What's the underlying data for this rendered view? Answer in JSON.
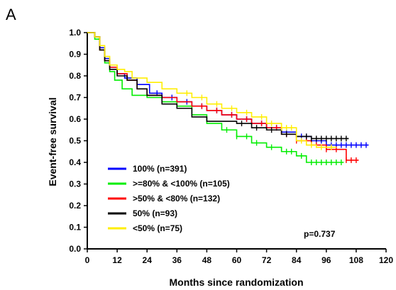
{
  "panel_label": "A",
  "chart_data": {
    "type": "line",
    "title": "",
    "xlabel": "Months since randomization",
    "ylabel": "Event-free survival",
    "xlim": [
      0,
      120
    ],
    "ylim": [
      0,
      1.0
    ],
    "x_ticks": [
      0,
      12,
      24,
      36,
      48,
      60,
      72,
      84,
      96,
      108,
      120
    ],
    "y_ticks": [
      "0.0",
      "0.1",
      "0.2",
      "0.3",
      "0.4",
      "0.5",
      "0.6",
      "0.7",
      "0.8",
      "0.9",
      "1.0"
    ],
    "grid": false,
    "legend_position": "bottom-left",
    "annotation": "p=0.737",
    "series": [
      {
        "name": "100% (n=391)",
        "color": "#0000ff",
        "x": [
          0,
          3,
          5,
          7,
          9,
          12,
          15,
          20,
          25,
          30,
          36,
          42,
          48,
          54,
          60,
          66,
          72,
          78,
          84,
          90,
          96,
          102,
          108,
          113
        ],
        "y": [
          1.0,
          0.98,
          0.93,
          0.88,
          0.84,
          0.81,
          0.79,
          0.76,
          0.72,
          0.7,
          0.68,
          0.66,
          0.64,
          0.62,
          0.6,
          0.58,
          0.56,
          0.54,
          0.52,
          0.5,
          0.48,
          0.48,
          0.48,
          0.48
        ],
        "censor_x": [
          28,
          34,
          40,
          46,
          52,
          58,
          64,
          70,
          76,
          80,
          84,
          86,
          88,
          90,
          92,
          94,
          96,
          98,
          100,
          102,
          104,
          106,
          108,
          110,
          112
        ]
      },
      {
        "name": ">=80% & <100% (n=105)",
        "color": "#00ee00",
        "x": [
          0,
          3,
          5,
          7,
          9,
          11,
          14,
          18,
          24,
          30,
          36,
          42,
          48,
          54,
          60,
          66,
          72,
          78,
          84,
          88,
          94,
          100,
          103
        ],
        "y": [
          1.0,
          0.97,
          0.92,
          0.86,
          0.82,
          0.78,
          0.74,
          0.71,
          0.7,
          0.68,
          0.66,
          0.62,
          0.58,
          0.55,
          0.52,
          0.49,
          0.47,
          0.45,
          0.43,
          0.4,
          0.4,
          0.4,
          0.4
        ],
        "censor_x": [
          56,
          60,
          64,
          68,
          74,
          80,
          82,
          86,
          90,
          92,
          94,
          96,
          98,
          100,
          102
        ]
      },
      {
        "name": ">50% & <80% (n=132)",
        "color": "#ff0000",
        "x": [
          0,
          3,
          5,
          7,
          9,
          12,
          16,
          20,
          24,
          30,
          36,
          42,
          48,
          54,
          60,
          66,
          72,
          78,
          84,
          90,
          96,
          102,
          104,
          109
        ],
        "y": [
          1.0,
          0.98,
          0.92,
          0.87,
          0.84,
          0.81,
          0.78,
          0.74,
          0.71,
          0.7,
          0.68,
          0.66,
          0.64,
          0.62,
          0.6,
          0.58,
          0.56,
          0.53,
          0.5,
          0.48,
          0.46,
          0.46,
          0.41,
          0.41
        ],
        "censor_x": [
          46,
          52,
          58,
          64,
          70,
          76,
          80,
          84,
          88,
          92,
          96,
          100,
          104,
          106,
          108
        ]
      },
      {
        "name": "50% (n=93)",
        "color": "#000000",
        "x": [
          0,
          3,
          5,
          7,
          9,
          12,
          16,
          20,
          24,
          30,
          36,
          42,
          48,
          54,
          60,
          66,
          72,
          78,
          84,
          90,
          96,
          100,
          105
        ],
        "y": [
          1.0,
          0.98,
          0.92,
          0.87,
          0.83,
          0.8,
          0.78,
          0.74,
          0.71,
          0.67,
          0.65,
          0.61,
          0.59,
          0.59,
          0.58,
          0.56,
          0.55,
          0.53,
          0.52,
          0.51,
          0.51,
          0.51,
          0.51
        ],
        "censor_x": [
          62,
          68,
          74,
          80,
          84,
          88,
          90,
          92,
          94,
          96,
          98,
          100,
          102,
          104
        ]
      },
      {
        "name": "<50% (n=75)",
        "color": "#ffee00",
        "x": [
          0,
          3,
          5,
          7,
          9,
          12,
          15,
          18,
          24,
          30,
          36,
          42,
          48,
          54,
          60,
          66,
          72,
          78,
          84,
          88,
          92,
          96,
          100
        ],
        "y": [
          1.0,
          0.98,
          0.94,
          0.89,
          0.85,
          0.83,
          0.82,
          0.79,
          0.77,
          0.74,
          0.72,
          0.7,
          0.67,
          0.65,
          0.63,
          0.61,
          0.58,
          0.56,
          0.5,
          0.48,
          0.47,
          0.47,
          0.47
        ],
        "censor_x": [
          40,
          46,
          52,
          58,
          64,
          70,
          74,
          78,
          80,
          82,
          86,
          90,
          94,
          98
        ]
      }
    ]
  }
}
